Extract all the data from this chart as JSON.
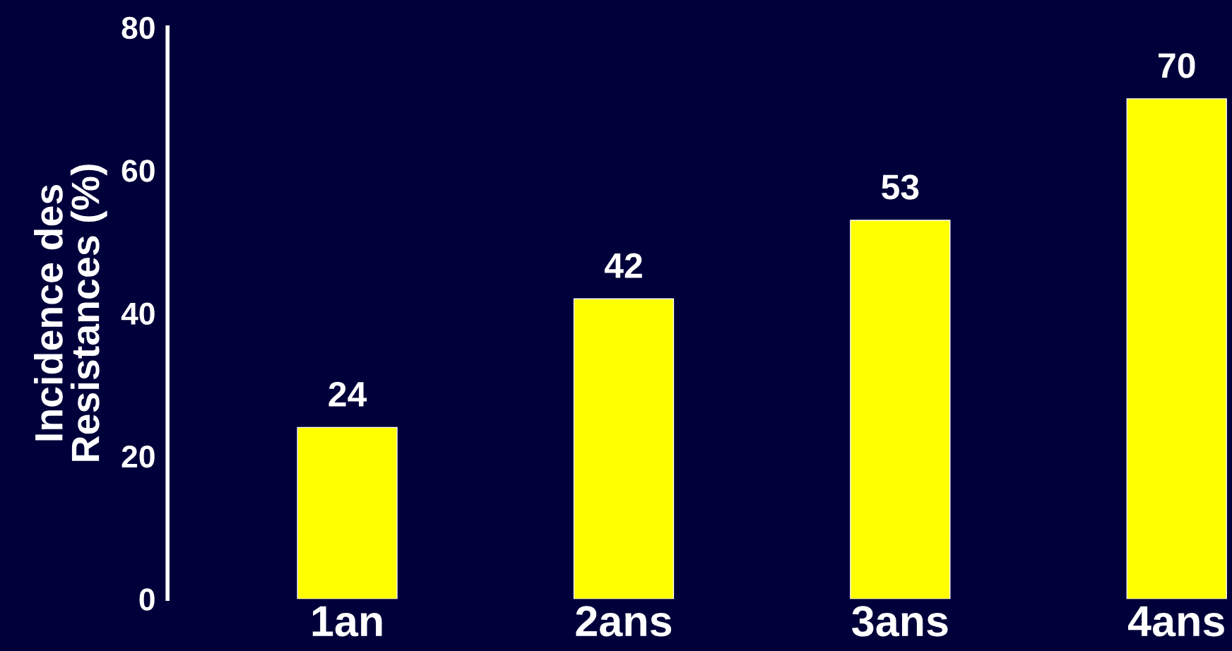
{
  "chart_data": {
    "type": "bar",
    "ylabel": "Incidence des\nResistances (%)",
    "categories": [
      "1an",
      "2ans",
      "3ans",
      "4ans"
    ],
    "values": [
      24,
      42,
      53,
      70
    ],
    "color": "#ffff00",
    "ylim": [
      0,
      80
    ],
    "yticks": [
      0,
      20,
      40,
      60,
      80
    ],
    "data_labels": true,
    "grid": false,
    "legend": false
  }
}
